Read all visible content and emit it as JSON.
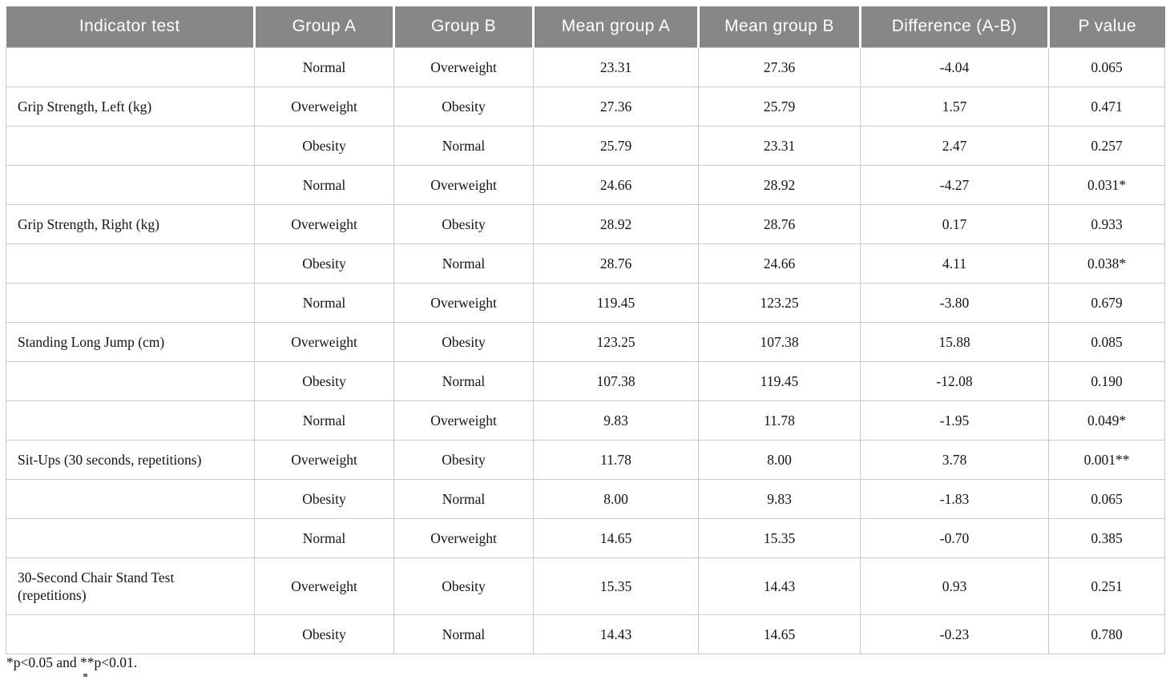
{
  "colors": {
    "header_bg": "#878787",
    "header_text": "#ffffff",
    "grid_line": "#c9c9c9",
    "body_text": "#141414",
    "page_bg": "#ffffff"
  },
  "table": {
    "columns": [
      "Indicator test",
      "Group A",
      "Group B",
      "Mean group A",
      "Mean group B",
      "Difference (A-B)",
      "P value"
    ],
    "rows": [
      {
        "indicator": "",
        "group_a": "Normal",
        "group_b": "Overweight",
        "mean_a": "23.31",
        "mean_b": "27.36",
        "difference": "-4.04",
        "p_value": "0.065"
      },
      {
        "indicator": "Grip Strength, Left (kg)",
        "group_a": "Overweight",
        "group_b": "Obesity",
        "mean_a": "27.36",
        "mean_b": "25.79",
        "difference": "1.57",
        "p_value": "0.471"
      },
      {
        "indicator": "",
        "group_a": "Obesity",
        "group_b": "Normal",
        "mean_a": "25.79",
        "mean_b": "23.31",
        "difference": "2.47",
        "p_value": "0.257"
      },
      {
        "indicator": "",
        "group_a": "Normal",
        "group_b": "Overweight",
        "mean_a": "24.66",
        "mean_b": "28.92",
        "difference": "-4.27",
        "p_value": "0.031*"
      },
      {
        "indicator": "Grip Strength, Right (kg)",
        "group_a": "Overweight",
        "group_b": "Obesity",
        "mean_a": "28.92",
        "mean_b": "28.76",
        "difference": "0.17",
        "p_value": "0.933"
      },
      {
        "indicator": "",
        "group_a": "Obesity",
        "group_b": "Normal",
        "mean_a": "28.76",
        "mean_b": "24.66",
        "difference": "4.11",
        "p_value": "0.038*"
      },
      {
        "indicator": "",
        "group_a": "Normal",
        "group_b": "Overweight",
        "mean_a": "119.45",
        "mean_b": "123.25",
        "difference": "-3.80",
        "p_value": "0.679"
      },
      {
        "indicator": "Standing Long Jump (cm)",
        "group_a": "Overweight",
        "group_b": "Obesity",
        "mean_a": "123.25",
        "mean_b": "107.38",
        "difference": "15.88",
        "p_value": "0.085"
      },
      {
        "indicator": "",
        "group_a": "Obesity",
        "group_b": "Normal",
        "mean_a": "107.38",
        "mean_b": "119.45",
        "difference": "-12.08",
        "p_value": "0.190"
      },
      {
        "indicator": "",
        "group_a": "Normal",
        "group_b": "Overweight",
        "mean_a": "9.83",
        "mean_b": "11.78",
        "difference": "-1.95",
        "p_value": "0.049*"
      },
      {
        "indicator": "Sit-Ups (30 seconds, repetitions)",
        "group_a": "Overweight",
        "group_b": "Obesity",
        "mean_a": "11.78",
        "mean_b": "8.00",
        "difference": "3.78",
        "p_value": "0.001**"
      },
      {
        "indicator": "",
        "group_a": "Obesity",
        "group_b": "Normal",
        "mean_a": "8.00",
        "mean_b": "9.83",
        "difference": "-1.83",
        "p_value": "0.065"
      },
      {
        "indicator": "",
        "group_a": "Normal",
        "group_b": "Overweight",
        "mean_a": "14.65",
        "mean_b": "15.35",
        "difference": "-0.70",
        "p_value": "0.385"
      },
      {
        "indicator": "30-Second Chair Stand Test (repetitions)",
        "group_a": "Overweight",
        "group_b": "Obesity",
        "mean_a": "15.35",
        "mean_b": "14.43",
        "difference": "0.93",
        "p_value": "0.251"
      },
      {
        "indicator": "",
        "group_a": "Obesity",
        "group_b": "Normal",
        "mean_a": "14.43",
        "mean_b": "14.65",
        "difference": "-0.23",
        "p_value": "0.780"
      }
    ],
    "footnote": "*p<0.05 and **p<0.01."
  }
}
